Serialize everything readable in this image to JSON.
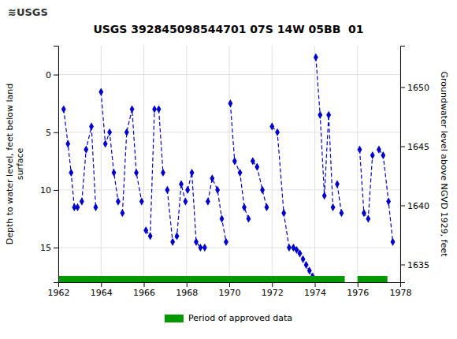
{
  "chart_data": {
    "type": "line",
    "title": "USGS 392845098544701 07S 14W 05BB  01",
    "annotations": [
      "≋USGS"
    ],
    "ylabel": "Depth to water level, feet below land\nsurface",
    "y2label": "Groundwater level above NGVD 1929, feet",
    "x": [
      1962.25,
      1962.45,
      1962.6,
      1962.75,
      1962.9,
      null,
      1963.1,
      1963.3,
      1963.55,
      1963.75,
      null,
      1964.0,
      1964.2,
      1964.4,
      1964.6,
      1964.8,
      null,
      1965.0,
      1965.2,
      1965.45,
      1965.65,
      1965.9,
      null,
      1966.1,
      1966.3,
      1966.5,
      1966.7,
      1966.9,
      null,
      1967.1,
      1967.35,
      1967.55,
      1967.75,
      1967.95,
      null,
      1968.05,
      1968.25,
      1968.45,
      1968.65,
      1968.85,
      null,
      1969.0,
      1969.2,
      1969.45,
      1969.65,
      1969.85,
      null,
      1970.05,
      1970.25,
      1970.5,
      1970.7,
      1970.9,
      null,
      1971.1,
      1971.3,
      1971.55,
      1971.75,
      null,
      1972.0,
      1972.25,
      1972.55,
      1972.8,
      null,
      1973.0,
      1973.15,
      1973.3,
      1973.45,
      1973.6,
      1973.75,
      1973.9,
      null,
      1974.05,
      1974.25,
      1974.45,
      1974.65,
      1974.85,
      null,
      1975.05,
      1975.25,
      null,
      1976.1,
      1976.3,
      1976.5,
      1976.7,
      null,
      1977.0,
      1977.2,
      1977.45,
      1977.65
    ],
    "series": [
      {
        "color": "#0000cc",
        "marker": "diamond",
        "line_style": "dashed",
        "values": [
          3.0,
          6.0,
          8.5,
          11.5,
          11.5,
          null,
          11.0,
          6.5,
          4.5,
          11.5,
          null,
          1.5,
          6.0,
          5.0,
          8.5,
          11.0,
          null,
          12.0,
          5.0,
          3.0,
          8.5,
          11.0,
          null,
          13.5,
          14.0,
          3.0,
          3.0,
          8.5,
          null,
          10.0,
          14.5,
          14.0,
          9.5,
          11.0,
          null,
          10.0,
          8.5,
          14.5,
          15.0,
          15.0,
          null,
          11.0,
          9.0,
          10.0,
          12.5,
          14.5,
          null,
          2.5,
          7.5,
          8.5,
          11.5,
          12.5,
          null,
          7.5,
          8.0,
          10.0,
          11.5,
          null,
          4.5,
          5.0,
          12.0,
          15.0,
          null,
          15.0,
          15.2,
          15.5,
          16.0,
          16.5,
          17.0,
          17.5,
          null,
          -1.5,
          3.5,
          10.5,
          3.5,
          11.5,
          null,
          9.5,
          12.0,
          null,
          6.5,
          12.0,
          12.5,
          7.0,
          null,
          6.5,
          7.0,
          11.0,
          14.5
        ]
      }
    ],
    "xlim": [
      1962,
      1978
    ],
    "xticks": [
      1962,
      1964,
      1966,
      1968,
      1970,
      1972,
      1974,
      1976,
      1978
    ],
    "ylim": [
      18.0,
      -2.5
    ],
    "yticks": [
      0,
      5,
      10,
      15
    ],
    "y2lim": [
      1633.5,
      1653.5
    ],
    "y2ticks": [
      1635,
      1640,
      1645,
      1650
    ],
    "grid": true,
    "legend": "bottom",
    "approved_periods": {
      "name": "Period of approved data",
      "color": "#009900",
      "ranges": [
        [
          1962.0,
          1975.4
        ],
        [
          1976.0,
          1977.4
        ]
      ]
    }
  }
}
